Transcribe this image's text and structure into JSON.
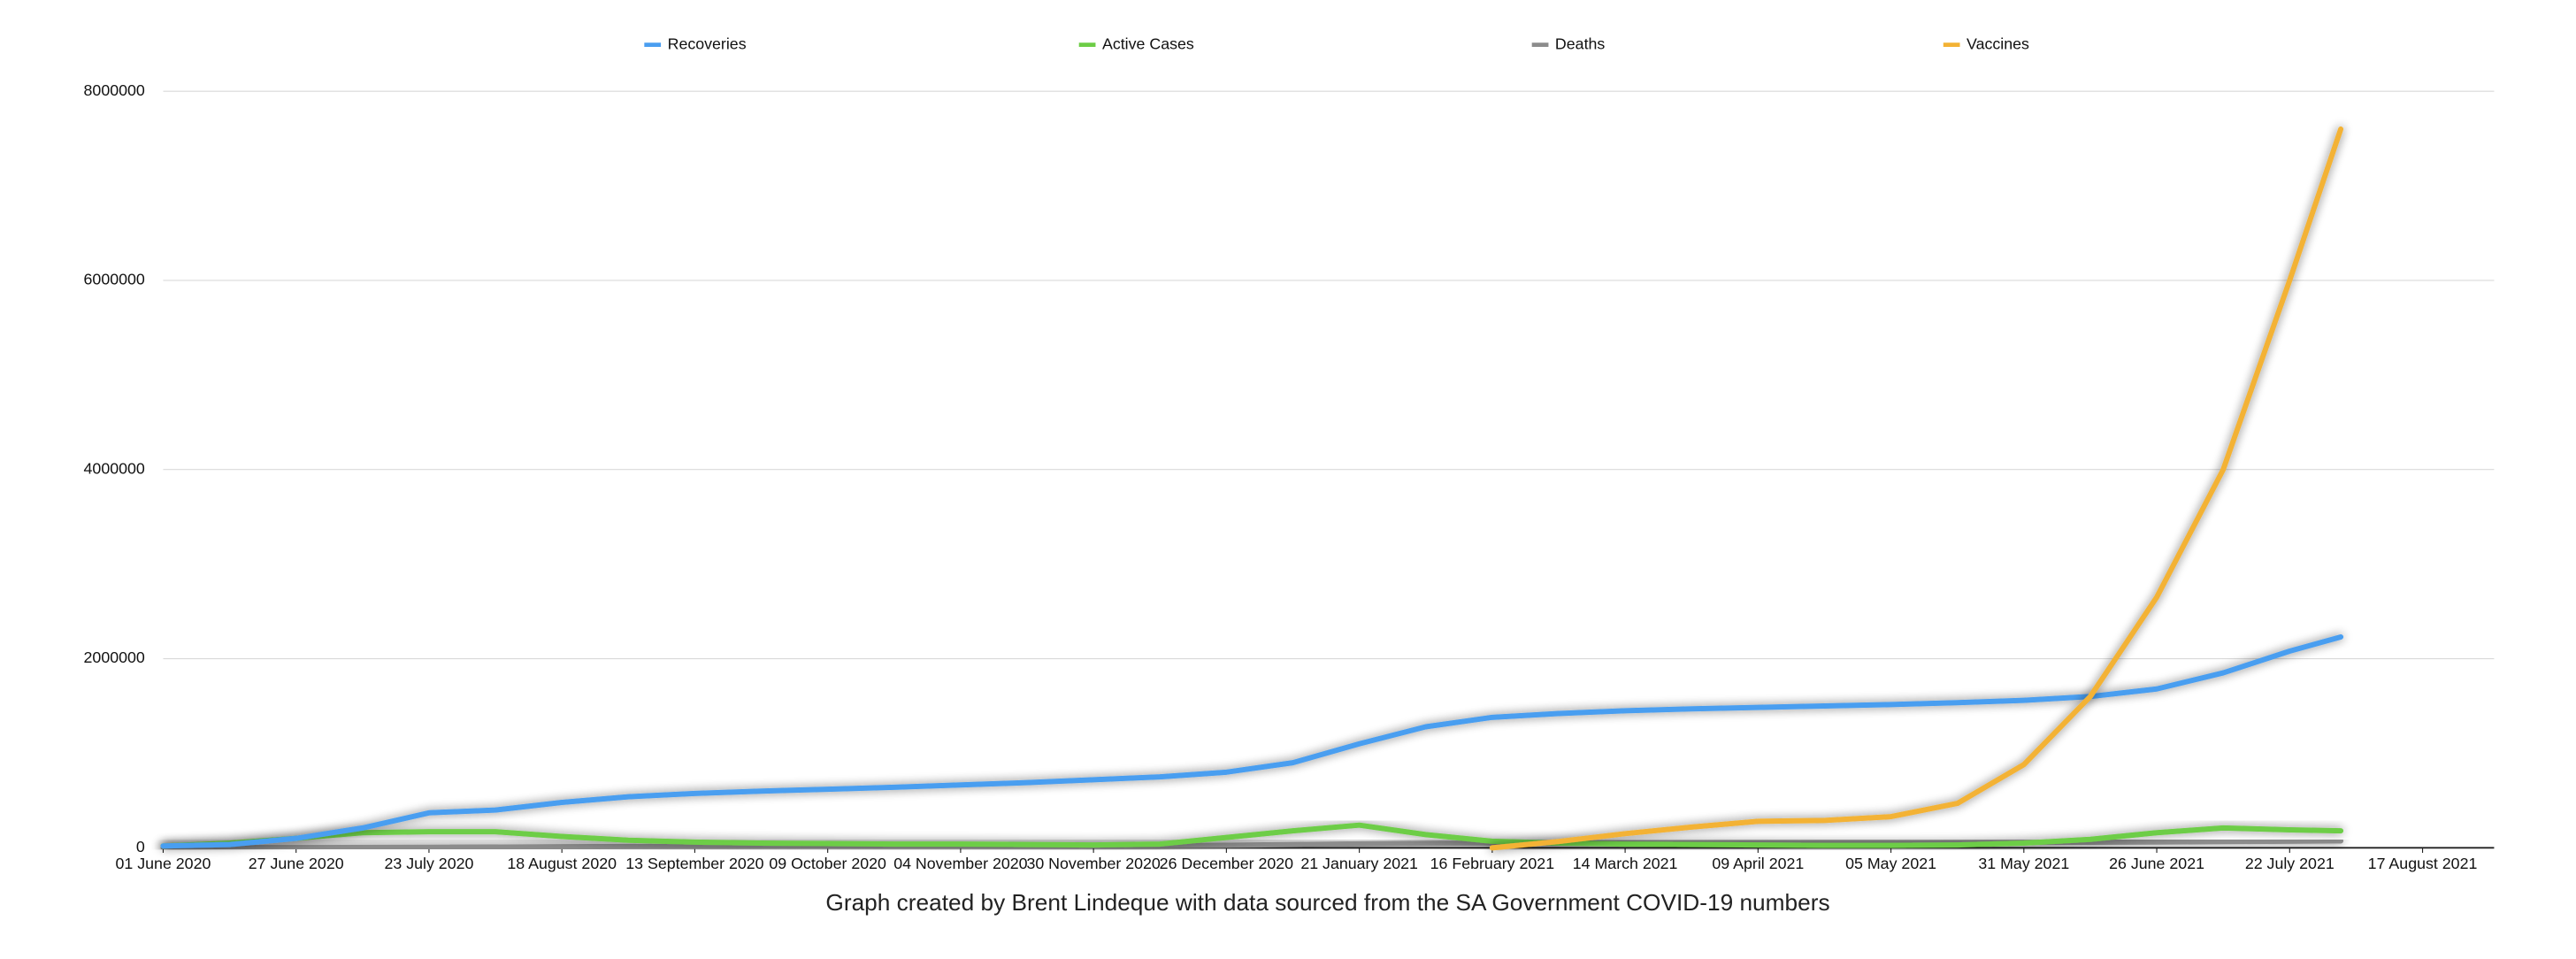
{
  "chart_data": {
    "type": "line",
    "legend": "top",
    "grid": true,
    "caption": "Graph created by Brent Lindeque with data sourced from the SA Government COVID-19 numbers",
    "x": [
      "2020-06-01",
      "2020-06-14",
      "2020-06-27",
      "2020-07-10",
      "2020-07-23",
      "2020-08-05",
      "2020-08-18",
      "2020-08-31",
      "2020-09-13",
      "2020-09-26",
      "2020-10-09",
      "2020-10-22",
      "2020-11-04",
      "2020-11-17",
      "2020-11-30",
      "2020-12-13",
      "2020-12-26",
      "2021-01-08",
      "2021-01-21",
      "2021-02-03",
      "2021-02-16",
      "2021-03-01",
      "2021-03-14",
      "2021-03-27",
      "2021-04-09",
      "2021-04-22",
      "2021-05-05",
      "2021-05-18",
      "2021-05-31",
      "2021-06-13",
      "2021-06-26",
      "2021-07-09",
      "2021-07-22",
      "2021-08-01"
    ],
    "xlim": [
      "2020-06-01",
      "2021-08-31"
    ],
    "xticks": [
      {
        "value": "2020-06-01",
        "label": "01 June 2020"
      },
      {
        "value": "2020-06-27",
        "label": "27 June 2020"
      },
      {
        "value": "2020-07-23",
        "label": "23 July 2020"
      },
      {
        "value": "2020-08-18",
        "label": "18 August 2020"
      },
      {
        "value": "2020-09-13",
        "label": "13 September 2020"
      },
      {
        "value": "2020-10-09",
        "label": "09 October 2020"
      },
      {
        "value": "2020-11-04",
        "label": "04 November 2020"
      },
      {
        "value": "2020-11-30",
        "label": "30 November 2020"
      },
      {
        "value": "2020-12-26",
        "label": "26 December 2020"
      },
      {
        "value": "2021-01-21",
        "label": "21 January 2021"
      },
      {
        "value": "2021-02-16",
        "label": "16 February 2021"
      },
      {
        "value": "2021-03-14",
        "label": "14 March 2021"
      },
      {
        "value": "2021-04-09",
        "label": "09 April 2021"
      },
      {
        "value": "2021-05-05",
        "label": "05 May 2021"
      },
      {
        "value": "2021-05-31",
        "label": "31 May 2021"
      },
      {
        "value": "2021-06-26",
        "label": "26 June 2021"
      },
      {
        "value": "2021-07-22",
        "label": "22 July 2021"
      },
      {
        "value": "2021-08-17",
        "label": "17 August 2021"
      }
    ],
    "ylim": [
      0,
      8000000
    ],
    "yticks": [
      0,
      2000000,
      4000000,
      6000000,
      8000000
    ],
    "series": [
      {
        "name": "Recoveries",
        "color": "#4a9ef0",
        "values": [
          20000,
          35000,
          100000,
          210000,
          370000,
          400000,
          480000,
          540000,
          575000,
          600000,
          620000,
          640000,
          665000,
          690000,
          720000,
          750000,
          800000,
          900000,
          1100000,
          1280000,
          1380000,
          1420000,
          1450000,
          1470000,
          1485000,
          1500000,
          1515000,
          1535000,
          1560000,
          1600000,
          1680000,
          1850000,
          2080000,
          2230000
        ]
      },
      {
        "name": "Active Cases",
        "color": "#6dcd46",
        "values": [
          20000,
          50000,
          100000,
          160000,
          170000,
          170000,
          120000,
          80000,
          60000,
          50000,
          45000,
          40000,
          40000,
          35000,
          30000,
          40000,
          110000,
          180000,
          240000,
          140000,
          70000,
          50000,
          40000,
          35000,
          30000,
          25000,
          25000,
          30000,
          50000,
          90000,
          160000,
          210000,
          190000,
          180000
        ]
      },
      {
        "name": "Deaths",
        "color": "#8c8c8c",
        "values": [
          1000,
          1500,
          2500,
          4000,
          6000,
          8500,
          12000,
          14000,
          15500,
          16500,
          17500,
          18500,
          19500,
          20500,
          21500,
          23000,
          27000,
          35000,
          42000,
          47000,
          49000,
          50500,
          51500,
          52500,
          53500,
          54500,
          55000,
          56000,
          57000,
          59000,
          62000,
          66000,
          70000,
          73000
        ]
      },
      {
        "name": "Vaccines",
        "color": "#f3b234",
        "values": [
          null,
          null,
          null,
          null,
          null,
          null,
          null,
          null,
          null,
          null,
          null,
          null,
          null,
          null,
          null,
          null,
          null,
          null,
          null,
          null,
          0,
          67000,
          150000,
          220000,
          280000,
          290000,
          330000,
          470000,
          880000,
          1600000,
          2650000,
          4000000,
          6000000,
          7600000
        ]
      }
    ]
  }
}
